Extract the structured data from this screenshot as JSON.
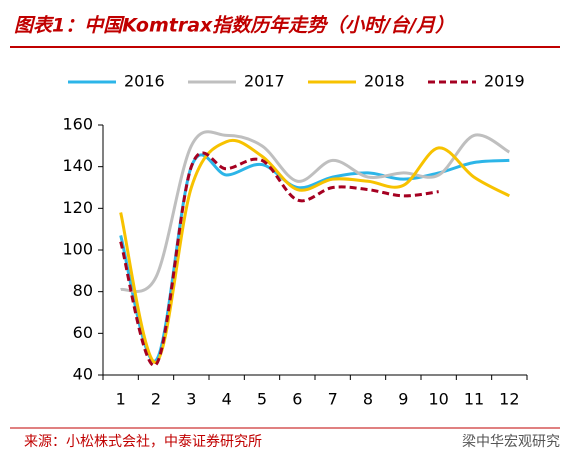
{
  "chart_data": {
    "type": "line",
    "title": "图表1：中国Komtrax指数历年走势（小时/台/月）",
    "source": "来源：小松株式会社，中泰证券研究所",
    "watermark": "梁中华宏观研究",
    "categories": [
      "1",
      "2",
      "3",
      "4",
      "5",
      "6",
      "7",
      "8",
      "9",
      "10",
      "11",
      "12"
    ],
    "series": [
      {
        "name": "2016",
        "color": "#2cb5e8",
        "dash": false,
        "values": [
          107,
          47,
          140,
          136,
          141,
          130,
          135,
          137,
          134,
          137,
          142,
          143
        ]
      },
      {
        "name": "2017",
        "color": "#bfbfbf",
        "dash": false,
        "values": [
          81,
          87,
          150,
          155,
          150,
          133,
          143,
          135,
          137,
          136,
          155,
          147
        ]
      },
      {
        "name": "2018",
        "color": "#f7c200",
        "dash": false,
        "values": [
          118,
          46,
          130,
          152,
          145,
          129,
          134,
          133,
          131,
          149,
          135,
          126
        ]
      },
      {
        "name": "2019",
        "color": "#a50021",
        "dash": true,
        "values": [
          104,
          45,
          140,
          139,
          143,
          124,
          130,
          129,
          126,
          128,
          null,
          null
        ]
      }
    ],
    "ylim": [
      40,
      160
    ],
    "yticks": [
      40,
      60,
      80,
      100,
      120,
      140,
      160
    ],
    "grid": false
  }
}
